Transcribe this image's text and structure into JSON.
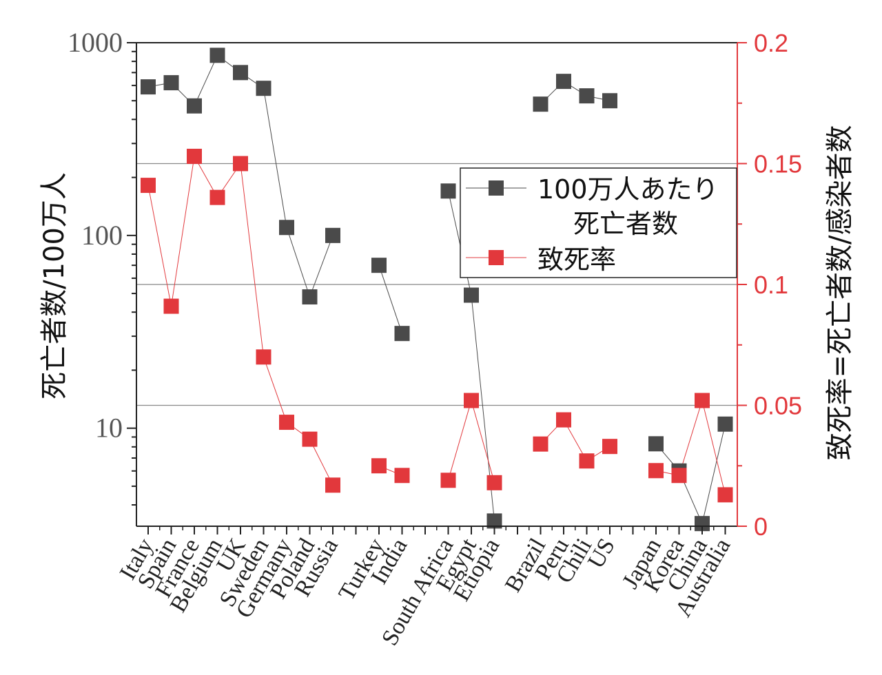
{
  "chart_data": {
    "type": "line",
    "categories": [
      "Italy",
      "Spain",
      "France",
      "Belgium",
      "UK",
      "Sweden",
      "Germany",
      "Poland",
      "Russia",
      "",
      "Turkey",
      "India",
      "",
      "South Africa",
      "Egypt",
      "Etiopia",
      "",
      "Brazil",
      "Peru",
      "Chili",
      "US",
      "",
      "Japan",
      "Korea",
      "China",
      "Australia"
    ],
    "yaxis_left": {
      "label": "死亡者数/100万人",
      "scale": "log",
      "range": [
        3.1,
        1000
      ],
      "ticks": [
        10,
        100,
        1000
      ],
      "tick_labels": [
        "10",
        "100",
        "1000"
      ]
    },
    "yaxis_right": {
      "label": "致死率=死亡者数/感染者数",
      "scale": "linear",
      "range": [
        0,
        0.2
      ],
      "ticks": [
        0,
        0.05,
        0.1,
        0.15,
        0.2
      ],
      "tick_labels": [
        "0",
        "0.05",
        "0.1",
        "0.15",
        "0.2"
      ],
      "color": "#e2383c"
    },
    "gridlines_right": [
      0.05,
      0.1,
      0.15
    ],
    "series": [
      {
        "name": "100万人あたり\n死亡者数",
        "legend_lines": [
          "100万人あたり",
          "死亡者数"
        ],
        "axis": "left",
        "color": "#4a4a4a",
        "values": [
          590,
          620,
          470,
          860,
          700,
          580,
          110,
          48,
          100,
          null,
          70,
          31,
          null,
          170,
          49,
          3.3,
          null,
          480,
          630,
          530,
          500,
          null,
          8.3,
          6.0,
          3.2,
          10.5
        ]
      },
      {
        "name": "致死率",
        "legend_lines": [
          "致死率"
        ],
        "axis": "right",
        "color": "#e2383c",
        "values": [
          0.141,
          0.091,
          0.153,
          0.136,
          0.15,
          0.07,
          0.043,
          0.036,
          0.017,
          null,
          0.025,
          0.021,
          null,
          0.019,
          0.052,
          0.018,
          null,
          0.034,
          0.044,
          0.027,
          0.033,
          null,
          0.023,
          0.021,
          0.052,
          0.013
        ]
      }
    ],
    "legend_position": "upper-right inside"
  }
}
